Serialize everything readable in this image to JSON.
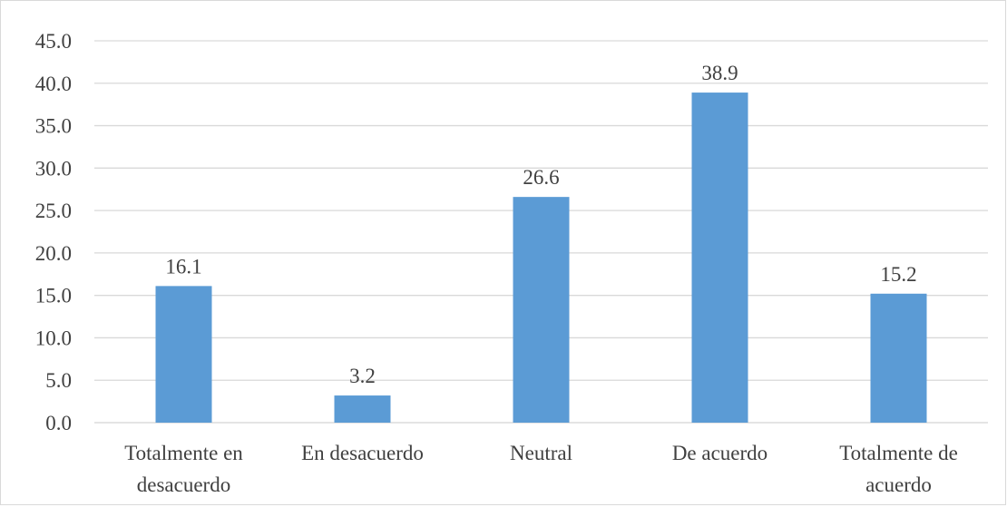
{
  "chart_data": {
    "type": "bar",
    "categories": [
      [
        "Totalmente en",
        "desacuerdo"
      ],
      [
        "En desacuerdo"
      ],
      [
        "Neutral"
      ],
      [
        "De acuerdo"
      ],
      [
        "Totalmente de",
        "acuerdo"
      ]
    ],
    "values": [
      16.1,
      3.2,
      26.6,
      38.9,
      15.2
    ],
    "value_labels": [
      "16.1",
      "3.2",
      "26.6",
      "38.9",
      "15.2"
    ],
    "y_ticks": [
      "0.0",
      "5.0",
      "10.0",
      "15.0",
      "20.0",
      "25.0",
      "30.0",
      "35.0",
      "40.0",
      "45.0"
    ],
    "ylim": [
      0,
      45
    ],
    "grid": true,
    "legend": "none",
    "bar_color": "#5b9bd5",
    "grid_color": "#d9d9d9",
    "text_color": "#404040"
  }
}
